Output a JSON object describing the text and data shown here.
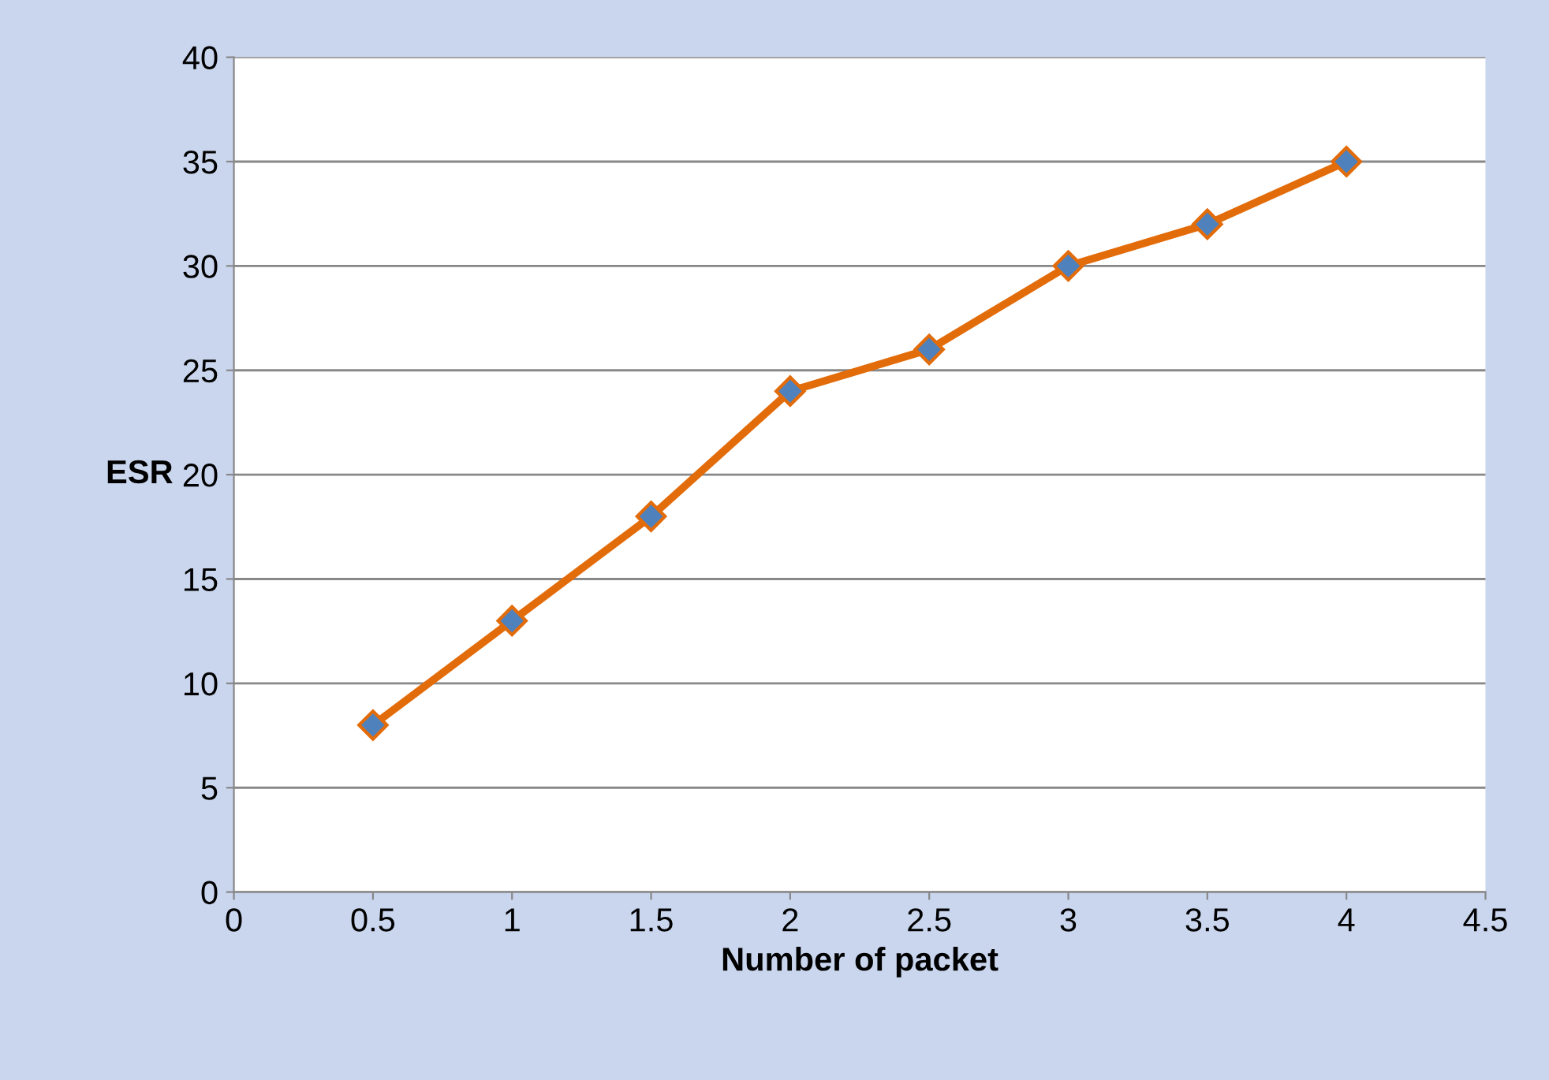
{
  "chart_data": {
    "type": "line",
    "xlabel": "Number of packet",
    "ylabel": "ESR",
    "x": [
      0.5,
      1,
      1.5,
      2,
      2.5,
      3,
      3.5,
      4
    ],
    "series": [
      {
        "color": "#e36c0a",
        "values": [
          8,
          13,
          18,
          24,
          26,
          30,
          32,
          35
        ]
      }
    ],
    "xlim": [
      0,
      4.5
    ],
    "ylim": [
      0,
      40
    ],
    "xticks": [
      0,
      0.5,
      1,
      1.5,
      2,
      2.5,
      3,
      3.5,
      4,
      4.5
    ],
    "yticks": [
      0,
      5,
      10,
      15,
      20,
      25,
      30,
      35,
      40
    ],
    "grid": "y",
    "marker": "diamond",
    "line_style": "solid",
    "legend": false
  }
}
